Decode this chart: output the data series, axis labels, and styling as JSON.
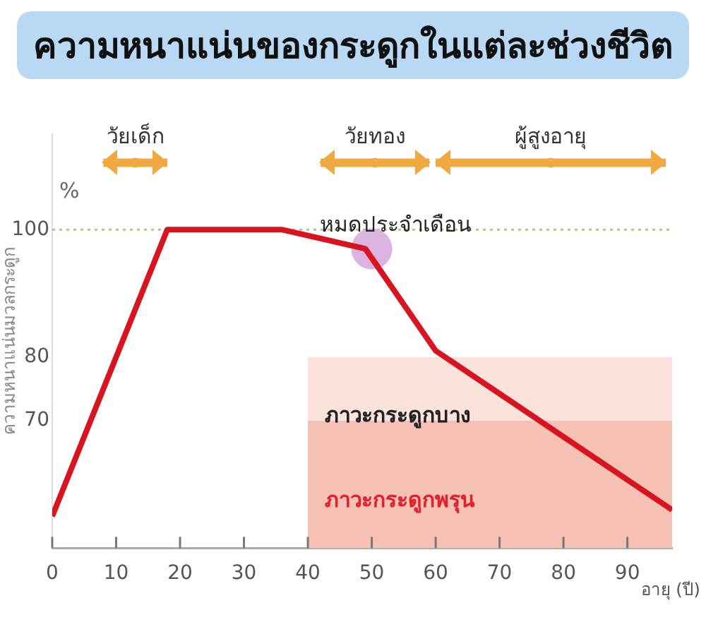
{
  "chart_data": {
    "type": "line",
    "title": "ความหนาแน่นของกระดูกในแต่ละช่วงชีวิต",
    "xlabel": "อายุ (ปี)",
    "ylabel": "ความหนาแน่นมวลกระดูก",
    "xlim": [
      0,
      97
    ],
    "xticks": [
      0,
      10,
      20,
      30,
      40,
      50,
      60,
      70,
      80,
      90
    ],
    "ylim": [
      50,
      115
    ],
    "yticks": [
      70,
      80,
      100
    ],
    "legend": false,
    "marker": "none",
    "ref_lines": [
      {
        "axis": "y",
        "value": 100,
        "label": null,
        "color": "#c8b88a",
        "line_style": "dotted"
      }
    ],
    "series": [
      {
        "type": "area",
        "color": "#f4c1b4",
        "x": [
          40,
          97
        ],
        "values": [
          70,
          70
        ]
      },
      {
        "type": "area",
        "color": "#fbe3dc",
        "x": [
          40,
          97
        ],
        "values": [
          80,
          80
        ]
      },
      {
        "type": "scatter",
        "color": "#dcb4e0",
        "marker": "circle",
        "x": [
          50
        ],
        "values": [
          97
        ]
      },
      {
        "color": "#d7141f",
        "x": [
          0,
          18,
          36,
          49,
          60,
          97
        ],
        "values": [
          55,
          100,
          100,
          97,
          81,
          56
        ]
      },
      {
        "type": "scatter",
        "color": "#f0a840",
        "marker": "circle",
        "x": [
          13,
          50.5,
          78
        ],
        "values": [
          110.5,
          110.5,
          110.5
        ],
        "xerrors": [
          [
            8,
            18
          ],
          [
            42,
            59
          ],
          [
            60,
            96
          ]
        ],
        "value_labels": [
          "วัยเด็ก",
          "วัยทอง",
          "ผู้สูงอายุ"
        ]
      }
    ],
    "annotations": [
      "%",
      "หมดประจำเดือน",
      "ภาวะกระดูกบาง",
      "ภาวะกระดูกพรุน"
    ]
  }
}
